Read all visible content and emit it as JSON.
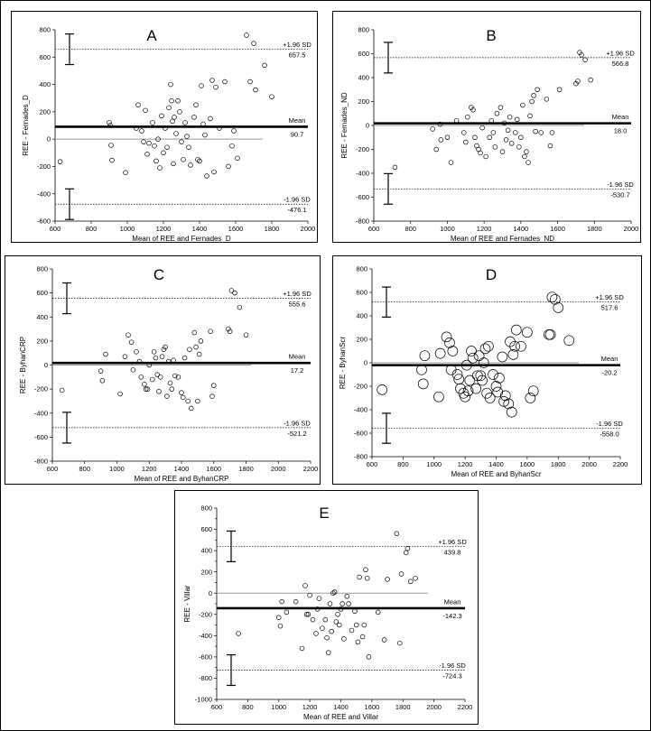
{
  "chart_data": [
    {
      "type": "scatter",
      "panel_label": "A",
      "xlabel": "Mean of REE and Fernades_D",
      "ylabel": "REE - Fernades_D",
      "xlim": [
        600,
        2000
      ],
      "ylim": [
        -600,
        800
      ],
      "xticks": [
        600,
        800,
        1000,
        1200,
        1400,
        1600,
        1800,
        2000
      ],
      "yticks": [
        -600,
        -400,
        -200,
        0,
        200,
        400,
        600,
        800
      ],
      "lines": {
        "upper": {
          "value": 657.5,
          "name": "+1.96 SD",
          "value_label": "657.5"
        },
        "mean": {
          "value": 90.7,
          "name": "Mean",
          "value_label": "90.7"
        },
        "lower": {
          "value": -476.1,
          "name": "-1.96 SD",
          "value_label": "-476.1"
        }
      },
      "marker": "small",
      "points": [
        [
          628,
          -165
        ],
        [
          900,
          120
        ],
        [
          905,
          100
        ],
        [
          910,
          -45
        ],
        [
          915,
          -155
        ],
        [
          990,
          -245
        ],
        [
          1050,
          80
        ],
        [
          1060,
          250
        ],
        [
          1080,
          60
        ],
        [
          1090,
          -20
        ],
        [
          1100,
          210
        ],
        [
          1110,
          -110
        ],
        [
          1120,
          -30
        ],
        [
          1140,
          120
        ],
        [
          1150,
          -50
        ],
        [
          1160,
          -160
        ],
        [
          1170,
          0
        ],
        [
          1180,
          -210
        ],
        [
          1190,
          170
        ],
        [
          1200,
          -100
        ],
        [
          1210,
          80
        ],
        [
          1220,
          -60
        ],
        [
          1230,
          230
        ],
        [
          1240,
          400
        ],
        [
          1245,
          280
        ],
        [
          1250,
          130
        ],
        [
          1255,
          -180
        ],
        [
          1260,
          160
        ],
        [
          1270,
          40
        ],
        [
          1280,
          280
        ],
        [
          1290,
          200
        ],
        [
          1300,
          -20
        ],
        [
          1310,
          -150
        ],
        [
          1320,
          120
        ],
        [
          1330,
          20
        ],
        [
          1340,
          -60
        ],
        [
          1350,
          -190
        ],
        [
          1370,
          160
        ],
        [
          1380,
          250
        ],
        [
          1390,
          -150
        ],
        [
          1400,
          -160
        ],
        [
          1410,
          390
        ],
        [
          1420,
          110
        ],
        [
          1430,
          30
        ],
        [
          1440,
          -270
        ],
        [
          1460,
          150
        ],
        [
          1470,
          430
        ],
        [
          1480,
          -240
        ],
        [
          1490,
          380
        ],
        [
          1510,
          80
        ],
        [
          1540,
          420
        ],
        [
          1560,
          -200
        ],
        [
          1580,
          -50
        ],
        [
          1590,
          60
        ],
        [
          1610,
          -140
        ],
        [
          1660,
          760
        ],
        [
          1680,
          420
        ],
        [
          1700,
          700
        ],
        [
          1710,
          360
        ],
        [
          1760,
          540
        ],
        [
          1800,
          310
        ]
      ]
    },
    {
      "type": "scatter",
      "panel_label": "B",
      "xlabel": "Mean of REE and Fernades_ND",
      "ylabel": "REE - Fernades_ND",
      "xlim": [
        600,
        2000
      ],
      "ylim": [
        -800,
        800
      ],
      "xticks": [
        600,
        800,
        1000,
        1200,
        1400,
        1600,
        1800,
        2000
      ],
      "yticks": [
        -800,
        -600,
        -400,
        -200,
        0,
        200,
        400,
        600,
        800
      ],
      "lines": {
        "upper": {
          "value": 566.8,
          "name": "+1.96 SD",
          "value_label": "566.8"
        },
        "mean": {
          "value": 18.0,
          "name": "Mean",
          "value_label": "18.0"
        },
        "lower": {
          "value": -530.7,
          "name": "-1.96 SD",
          "value_label": "-530.7"
        }
      },
      "marker": "small",
      "points": [
        [
          715,
          -350
        ],
        [
          920,
          -30
        ],
        [
          940,
          -200
        ],
        [
          960,
          10
        ],
        [
          965,
          -120
        ],
        [
          1000,
          -100
        ],
        [
          1020,
          -310
        ],
        [
          1050,
          40
        ],
        [
          1090,
          -60
        ],
        [
          1100,
          -140
        ],
        [
          1110,
          70
        ],
        [
          1130,
          150
        ],
        [
          1140,
          130
        ],
        [
          1150,
          -100
        ],
        [
          1160,
          -170
        ],
        [
          1170,
          -200
        ],
        [
          1180,
          -230
        ],
        [
          1190,
          -20
        ],
        [
          1210,
          -260
        ],
        [
          1230,
          -100
        ],
        [
          1240,
          40
        ],
        [
          1250,
          -60
        ],
        [
          1260,
          -180
        ],
        [
          1270,
          100
        ],
        [
          1290,
          150
        ],
        [
          1300,
          -220
        ],
        [
          1310,
          20
        ],
        [
          1320,
          -120
        ],
        [
          1330,
          -40
        ],
        [
          1340,
          70
        ],
        [
          1350,
          -150
        ],
        [
          1370,
          -60
        ],
        [
          1380,
          50
        ],
        [
          1390,
          -180
        ],
        [
          1400,
          -100
        ],
        [
          1410,
          170
        ],
        [
          1420,
          -260
        ],
        [
          1430,
          -220
        ],
        [
          1440,
          -310
        ],
        [
          1450,
          80
        ],
        [
          1460,
          200
        ],
        [
          1470,
          250
        ],
        [
          1480,
          -50
        ],
        [
          1490,
          300
        ],
        [
          1510,
          -60
        ],
        [
          1540,
          220
        ],
        [
          1560,
          -170
        ],
        [
          1570,
          -60
        ],
        [
          1610,
          300
        ],
        [
          1700,
          350
        ],
        [
          1710,
          370
        ],
        [
          1720,
          610
        ],
        [
          1730,
          590
        ],
        [
          1750,
          550
        ],
        [
          1780,
          380
        ]
      ]
    },
    {
      "type": "scatter",
      "panel_label": "C",
      "xlabel": "Mean of REE and ByhanCRP",
      "ylabel": "REE - ByhanCRP",
      "xlim": [
        600,
        2200
      ],
      "ylim": [
        -800,
        800
      ],
      "xticks": [
        600,
        800,
        1000,
        1200,
        1400,
        1600,
        1800,
        2000,
        2200
      ],
      "yticks": [
        -800,
        -600,
        -400,
        -200,
        0,
        200,
        400,
        600,
        800
      ],
      "lines": {
        "upper": {
          "value": 555.6,
          "name": "+1.96 SD",
          "value_label": "555.6"
        },
        "mean": {
          "value": 17.2,
          "name": "Mean",
          "value_label": "17.2"
        },
        "lower": {
          "value": -521.2,
          "name": "-1.96 SD",
          "value_label": "-521.2"
        }
      },
      "marker": "small",
      "points": [
        [
          660,
          -210
        ],
        [
          900,
          -50
        ],
        [
          910,
          -130
        ],
        [
          930,
          90
        ],
        [
          1020,
          -240
        ],
        [
          1050,
          70
        ],
        [
          1070,
          250
        ],
        [
          1090,
          190
        ],
        [
          1100,
          -40
        ],
        [
          1120,
          110
        ],
        [
          1140,
          30
        ],
        [
          1150,
          -100
        ],
        [
          1170,
          -160
        ],
        [
          1180,
          -200
        ],
        [
          1190,
          -200
        ],
        [
          1200,
          0
        ],
        [
          1220,
          -120
        ],
        [
          1230,
          110
        ],
        [
          1240,
          60
        ],
        [
          1250,
          -80
        ],
        [
          1260,
          -220
        ],
        [
          1270,
          -100
        ],
        [
          1280,
          70
        ],
        [
          1290,
          130
        ],
        [
          1300,
          150
        ],
        [
          1310,
          -260
        ],
        [
          1320,
          30
        ],
        [
          1330,
          -150
        ],
        [
          1340,
          -200
        ],
        [
          1350,
          40
        ],
        [
          1360,
          -90
        ],
        [
          1380,
          -100
        ],
        [
          1400,
          -230
        ],
        [
          1410,
          -270
        ],
        [
          1420,
          60
        ],
        [
          1440,
          -300
        ],
        [
          1450,
          130
        ],
        [
          1460,
          -360
        ],
        [
          1480,
          270
        ],
        [
          1490,
          150
        ],
        [
          1500,
          -300
        ],
        [
          1510,
          90
        ],
        [
          1520,
          200
        ],
        [
          1580,
          280
        ],
        [
          1590,
          -260
        ],
        [
          1600,
          -170
        ],
        [
          1690,
          300
        ],
        [
          1700,
          280
        ],
        [
          1710,
          620
        ],
        [
          1730,
          600
        ],
        [
          1760,
          480
        ],
        [
          1800,
          250
        ]
      ]
    },
    {
      "type": "scatter",
      "panel_label": "D",
      "xlabel": "Mean of REE and ByhanScr",
      "ylabel": "REE - ByhanScr",
      "xlim": [
        600,
        2200
      ],
      "ylim": [
        -800,
        800
      ],
      "xticks": [
        600,
        800,
        1000,
        1200,
        1400,
        1600,
        1800,
        2000,
        2200
      ],
      "yticks": [
        -800,
        -600,
        -400,
        -200,
        0,
        200,
        400,
        600,
        800
      ],
      "lines": {
        "upper": {
          "value": 517.6,
          "name": "+1.96 SD",
          "value_label": "517.6"
        },
        "mean": {
          "value": -20.2,
          "name": "Mean",
          "value_label": "-20.2"
        },
        "lower": {
          "value": -558.0,
          "name": "-1.96 SD",
          "value_label": "-558.0"
        }
      },
      "marker": "large",
      "points": [
        [
          665,
          -230
        ],
        [
          920,
          -60
        ],
        [
          930,
          -180
        ],
        [
          940,
          60
        ],
        [
          1030,
          -290
        ],
        [
          1040,
          80
        ],
        [
          1080,
          220
        ],
        [
          1100,
          170
        ],
        [
          1110,
          -60
        ],
        [
          1120,
          100
        ],
        [
          1150,
          -100
        ],
        [
          1160,
          -140
        ],
        [
          1170,
          -220
        ],
        [
          1190,
          -260
        ],
        [
          1200,
          -290
        ],
        [
          1210,
          -20
        ],
        [
          1220,
          -240
        ],
        [
          1230,
          -150
        ],
        [
          1240,
          100
        ],
        [
          1250,
          40
        ],
        [
          1270,
          -220
        ],
        [
          1280,
          -110
        ],
        [
          1290,
          60
        ],
        [
          1300,
          -110
        ],
        [
          1310,
          -150
        ],
        [
          1320,
          0
        ],
        [
          1330,
          120
        ],
        [
          1340,
          -260
        ],
        [
          1350,
          140
        ],
        [
          1360,
          -300
        ],
        [
          1380,
          -100
        ],
        [
          1400,
          -200
        ],
        [
          1410,
          -250
        ],
        [
          1420,
          -130
        ],
        [
          1440,
          50
        ],
        [
          1450,
          -330
        ],
        [
          1460,
          -280
        ],
        [
          1480,
          -350
        ],
        [
          1490,
          180
        ],
        [
          1500,
          -420
        ],
        [
          1510,
          70
        ],
        [
          1520,
          140
        ],
        [
          1530,
          280
        ],
        [
          1560,
          140
        ],
        [
          1600,
          260
        ],
        [
          1620,
          -300
        ],
        [
          1640,
          -240
        ],
        [
          1740,
          240
        ],
        [
          1750,
          240
        ],
        [
          1760,
          560
        ],
        [
          1780,
          540
        ],
        [
          1800,
          470
        ],
        [
          1870,
          190
        ]
      ]
    },
    {
      "type": "scatter",
      "panel_label": "E",
      "xlabel": "Mean of REE and Villar",
      "ylabel": "REE - Villar",
      "xlim": [
        600,
        2200
      ],
      "ylim": [
        -1000,
        800
      ],
      "xticks": [
        600,
        800,
        1000,
        1200,
        1400,
        1600,
        1800,
        2000,
        2200
      ],
      "yticks": [
        -1000,
        -900,
        -800,
        -700,
        -600,
        -500,
        -400,
        -300,
        -200,
        -100,
        0,
        100,
        200,
        300,
        400,
        500,
        600,
        700,
        800
      ],
      "ytick_labels": [
        -1000,
        -800,
        -600,
        -400,
        -200,
        0,
        200,
        400,
        600,
        800
      ],
      "lines": {
        "upper": {
          "value": 439.8,
          "name": "+1.96 SD",
          "value_label": "439.8"
        },
        "mean": {
          "value": -142.3,
          "name": "Mean",
          "value_label": "-142.3"
        },
        "lower": {
          "value": -724.3,
          "name": "-1.96 SD",
          "value_label": "-724.3"
        }
      },
      "marker": "small",
      "points": [
        [
          740,
          -380
        ],
        [
          1000,
          -230
        ],
        [
          1010,
          -310
        ],
        [
          1020,
          -80
        ],
        [
          1050,
          -180
        ],
        [
          1110,
          -80
        ],
        [
          1150,
          -520
        ],
        [
          1170,
          70
        ],
        [
          1180,
          -200
        ],
        [
          1190,
          -200
        ],
        [
          1200,
          -20
        ],
        [
          1220,
          -250
        ],
        [
          1240,
          -380
        ],
        [
          1250,
          -150
        ],
        [
          1260,
          -50
        ],
        [
          1280,
          -330
        ],
        [
          1300,
          -250
        ],
        [
          1310,
          -420
        ],
        [
          1320,
          -560
        ],
        [
          1330,
          -100
        ],
        [
          1340,
          -360
        ],
        [
          1350,
          0
        ],
        [
          1360,
          10
        ],
        [
          1370,
          -270
        ],
        [
          1380,
          -200
        ],
        [
          1390,
          -300
        ],
        [
          1400,
          -150
        ],
        [
          1410,
          -100
        ],
        [
          1420,
          -430
        ],
        [
          1440,
          -30
        ],
        [
          1450,
          -100
        ],
        [
          1470,
          -350
        ],
        [
          1490,
          -170
        ],
        [
          1500,
          -300
        ],
        [
          1510,
          -460
        ],
        [
          1520,
          150
        ],
        [
          1540,
          -410
        ],
        [
          1550,
          -300
        ],
        [
          1560,
          220
        ],
        [
          1570,
          140
        ],
        [
          1580,
          -600
        ],
        [
          1640,
          -180
        ],
        [
          1680,
          -440
        ],
        [
          1700,
          130
        ],
        [
          1760,
          560
        ],
        [
          1780,
          -470
        ],
        [
          1790,
          180
        ],
        [
          1820,
          380
        ],
        [
          1830,
          420
        ],
        [
          1850,
          110
        ],
        [
          1880,
          140
        ]
      ]
    }
  ]
}
